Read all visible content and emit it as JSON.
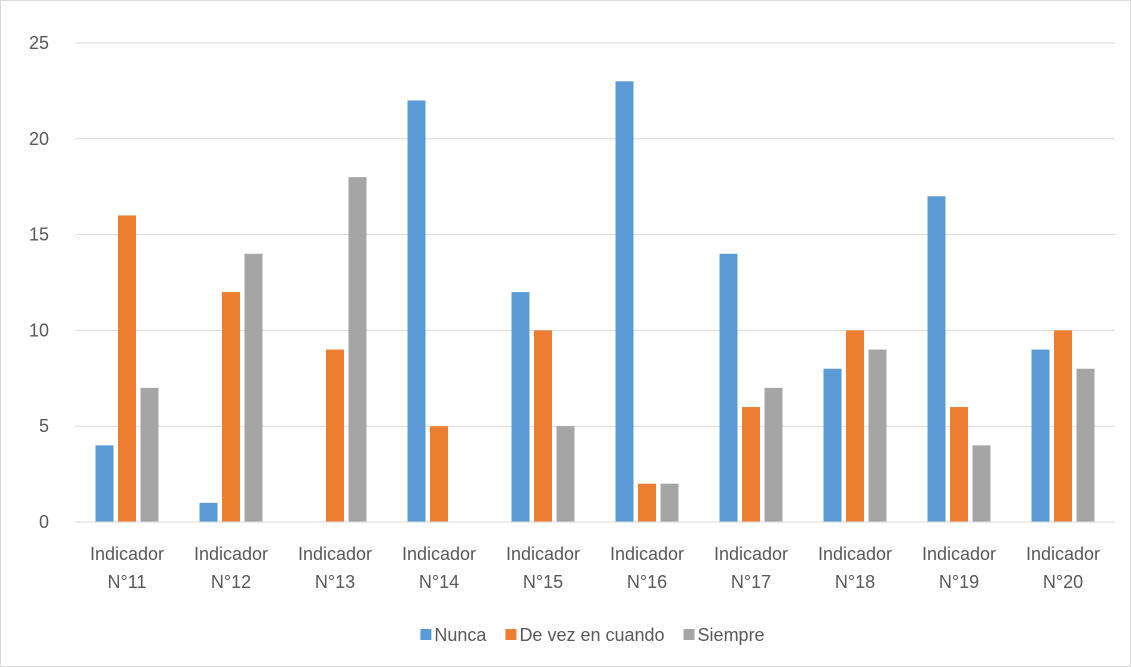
{
  "chart_data": {
    "type": "bar",
    "title": "",
    "xlabel": "",
    "ylabel": "",
    "ylim": [
      0,
      25
    ],
    "yticks": [
      0,
      5,
      10,
      15,
      20,
      25
    ],
    "grid": true,
    "legend_position": "bottom",
    "categories": [
      [
        "Indicador",
        "N°11"
      ],
      [
        "Indicador",
        "N°12"
      ],
      [
        "Indicador",
        "N°13"
      ],
      [
        "Indicador",
        "N°14"
      ],
      [
        "Indicador",
        "N°15"
      ],
      [
        "Indicador",
        "N°16"
      ],
      [
        "Indicador",
        "N°17"
      ],
      [
        "Indicador",
        "N°18"
      ],
      [
        "Indicador",
        "N°19"
      ],
      [
        "Indicador",
        "N°20"
      ]
    ],
    "series": [
      {
        "name": "Nunca",
        "color": "#5b9bd5",
        "values": [
          4,
          1,
          0,
          22,
          12,
          23,
          14,
          8,
          17,
          9
        ]
      },
      {
        "name": "De vez en cuando",
        "color": "#ed7d31",
        "values": [
          16,
          12,
          9,
          5,
          10,
          2,
          6,
          10,
          6,
          10
        ]
      },
      {
        "name": "Siempre",
        "color": "#a5a5a5",
        "values": [
          7,
          14,
          18,
          0,
          5,
          2,
          7,
          9,
          4,
          8
        ]
      }
    ]
  }
}
